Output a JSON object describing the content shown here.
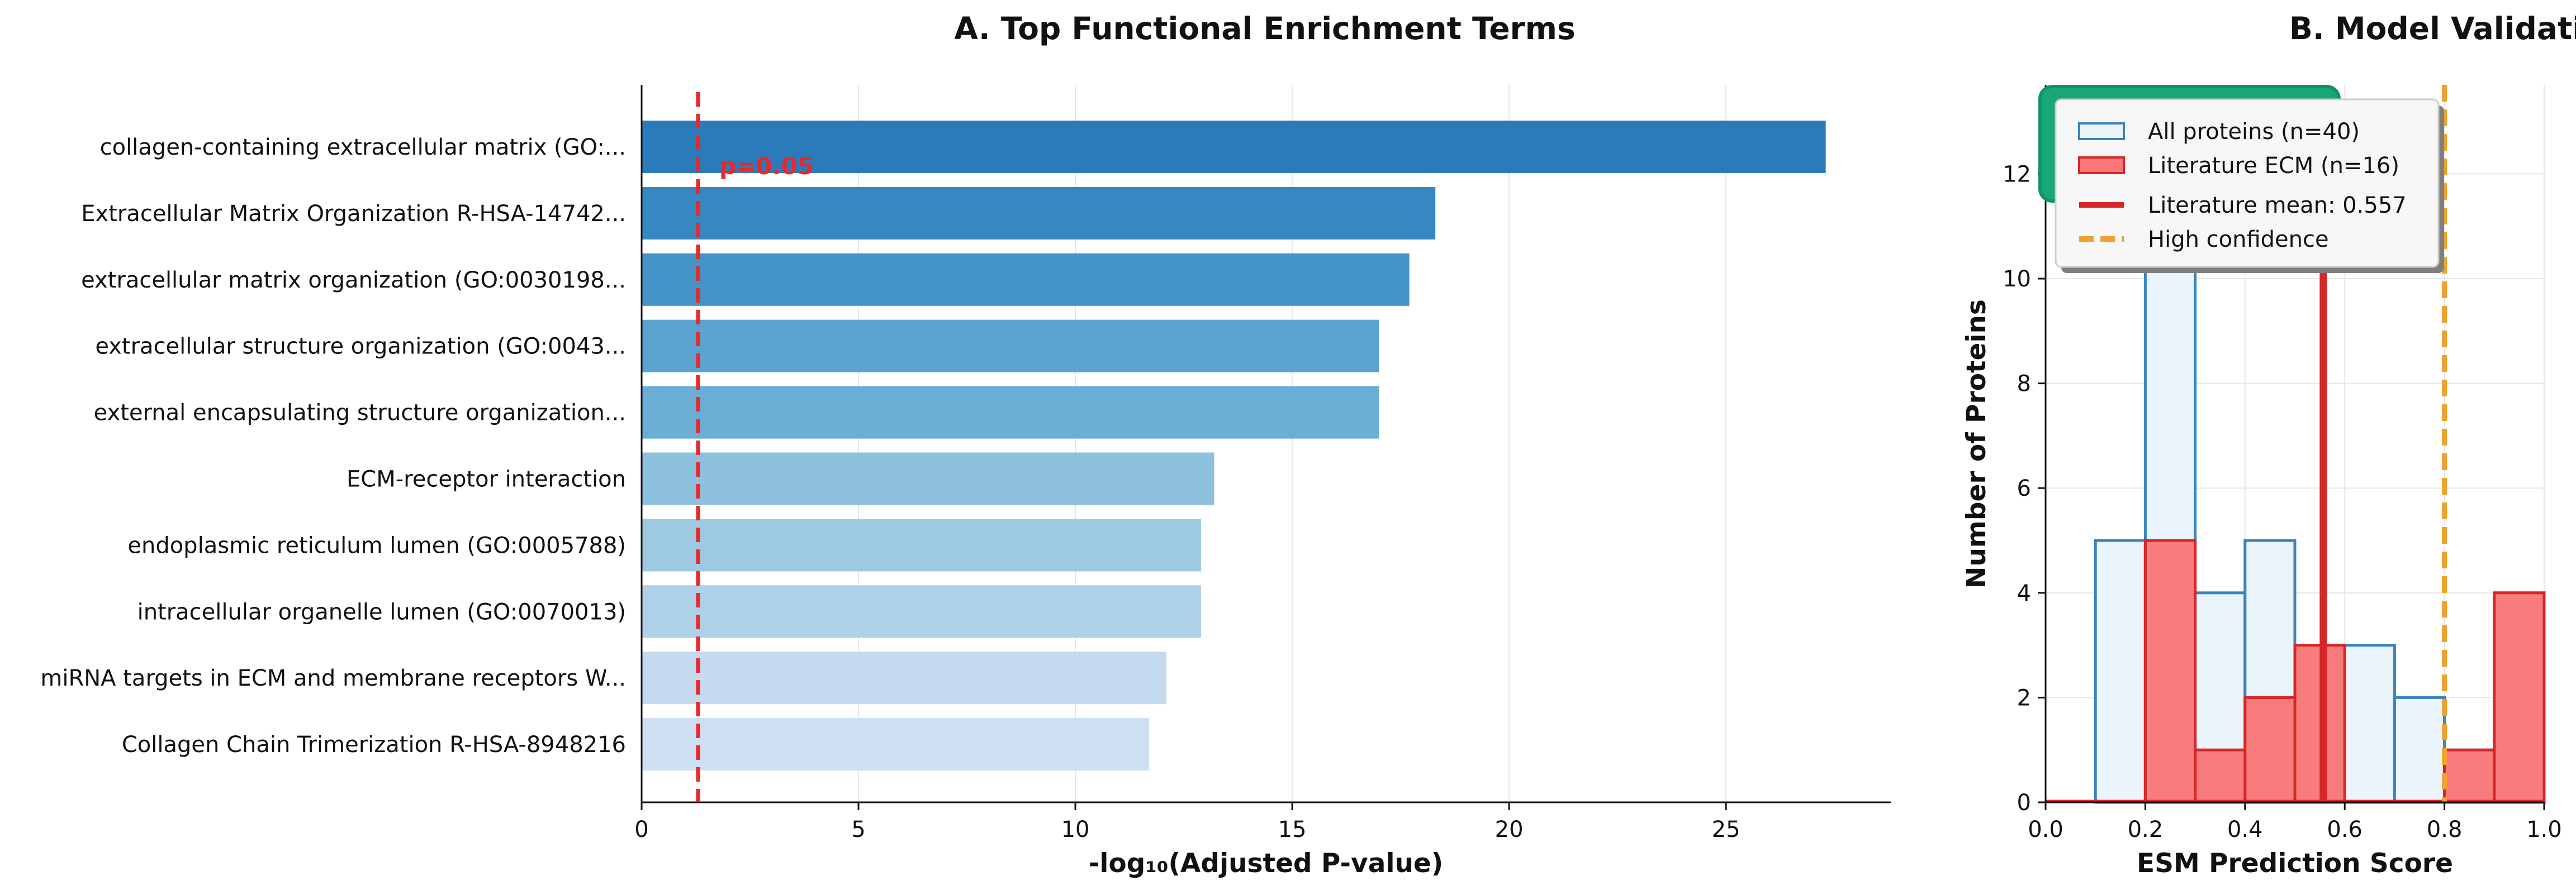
{
  "chart_data": [
    {
      "type": "bar",
      "orientation": "horizontal",
      "title": "A. Top Functional Enrichment Terms",
      "xlabel": "-log₁₀(Adjusted P-value)",
      "ylabel": "",
      "xlim": [
        0,
        28.8
      ],
      "xticks": [
        0,
        5,
        10,
        15,
        20,
        25
      ],
      "grid": true,
      "categories": [
        "collagen-containing extracellular matrix (GO:...",
        "Extracellular Matrix Organization R-HSA-14742...",
        "extracellular matrix organization (GO:0030198...",
        "extracellular structure organization (GO:0043...",
        "external encapsulating structure organization...",
        "ECM-receptor interaction",
        "endoplasmic reticulum lumen (GO:0005788)",
        "intracellular organelle lumen (GO:0070013)",
        "miRNA targets in ECM and membrane receptors W...",
        "Collagen Chain Trimerization R-HSA-8948216"
      ],
      "values": [
        27.3,
        18.3,
        17.7,
        17.0,
        17.0,
        13.2,
        12.9,
        12.9,
        12.1,
        11.7
      ],
      "bar_colors": [
        "#2b7bba",
        "#3787c0",
        "#4594c7",
        "#5ba3d0",
        "#6aaed6",
        "#8dc1dd",
        "#9ecae1",
        "#afd1e7",
        "#c4daee",
        "#cddff1"
      ],
      "reference_line": {
        "x": 1.301,
        "label": "p=0.05",
        "color": "#e8282b"
      }
    },
    {
      "type": "histogram",
      "title": "B. Model Validation",
      "xlabel": "ESM Prediction Score",
      "ylabel": "Number of Proteins",
      "xlim": [
        0.0,
        1.0
      ],
      "ylim": [
        0,
        13.7
      ],
      "xticks": [
        0.0,
        0.2,
        0.4,
        0.6,
        0.8,
        1.0
      ],
      "yticks": [
        0,
        2,
        4,
        6,
        8,
        10,
        12
      ],
      "grid": true,
      "bin_edges": [
        0.0,
        0.1,
        0.2,
        0.3,
        0.4,
        0.5,
        0.6,
        0.7,
        0.8,
        0.9,
        1.0
      ],
      "series": [
        {
          "name": "All proteins (n=40)",
          "counts": [
            0,
            5,
            13,
            4,
            5,
            3,
            3,
            2,
            1,
            4
          ],
          "fill": "#eaf4fb",
          "stroke": "#3a83bd"
        },
        {
          "name": "Literature ECM (n=16)",
          "counts": [
            0,
            0,
            5,
            1,
            2,
            3,
            0,
            0,
            1,
            4
          ],
          "fill": "#f87879",
          "stroke": "#d62728"
        }
      ],
      "lines": [
        {
          "name": "Literature mean: 0.557",
          "x": 0.557,
          "color": "#d62728",
          "style": "solid"
        },
        {
          "name": "High confidence",
          "x": 0.8,
          "color": "#f0a22e",
          "style": "dashed"
        }
      ],
      "legend_position": "upper-left"
    }
  ],
  "colors": {
    "axis": "#111111",
    "grid": "#e6e6e6",
    "badge": "#1ba67a",
    "badge_border": "#10936a"
  }
}
